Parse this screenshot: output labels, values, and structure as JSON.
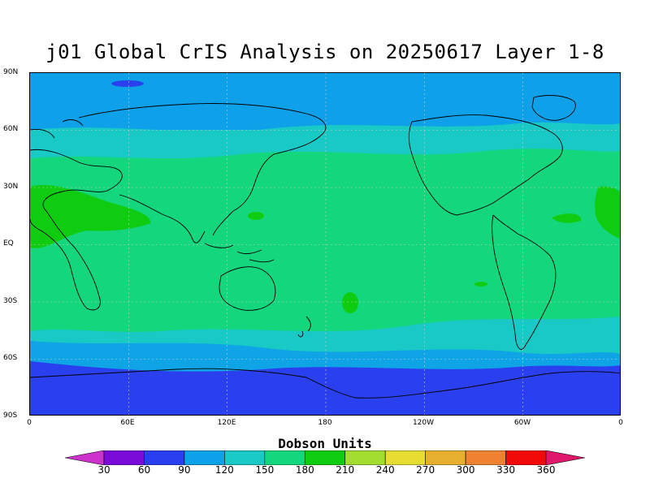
{
  "title": "j01 Global CrIS Analysis on 20250617 Layer 1-8",
  "y_axis_ticks": [
    "90N",
    "60N",
    "30N",
    "EQ",
    "30S",
    "60S",
    "90S"
  ],
  "x_axis_ticks": [
    "0",
    "60E",
    "120E",
    "180",
    "120W",
    "60W",
    "0"
  ],
  "colorbar": {
    "title": "Dobson Units",
    "labels": [
      "30",
      "60",
      "90",
      "120",
      "150",
      "180",
      "210",
      "240",
      "270",
      "300",
      "330",
      "360"
    ],
    "colors": [
      "#cc33cc",
      "#7a0ad8",
      "#2a3fee",
      "#0ea0e8",
      "#19c9c6",
      "#14d67d",
      "#10cc10",
      "#a3dd32",
      "#e6dc32",
      "#e6af2d",
      "#ee8232",
      "#f00a0a",
      "#e0186a"
    ]
  },
  "chart_data": {
    "type": "heatmap",
    "title": "j01 Global CrIS Analysis on 20250617 Layer 1-8",
    "xlabel": "",
    "ylabel": "",
    "units": "Dobson Units",
    "x_range": [
      "0",
      "360"
    ],
    "y_range": [
      "90S",
      "90N"
    ],
    "color_levels": [
      30,
      60,
      90,
      120,
      150,
      180,
      210,
      240,
      270,
      300,
      330,
      360
    ],
    "zonal_bands": [
      {
        "lat_from": 90,
        "lat_to": 65,
        "value_range": [
          90,
          120
        ]
      },
      {
        "lat_from": 65,
        "lat_to": 45,
        "value_range": [
          120,
          150
        ]
      },
      {
        "lat_from": 45,
        "lat_to": -30,
        "value_range": [
          150,
          180
        ]
      },
      {
        "lat_from": -30,
        "lat_to": -55,
        "value_range": [
          120,
          150
        ]
      },
      {
        "lat_from": -55,
        "lat_to": -65,
        "value_range": [
          90,
          120
        ]
      },
      {
        "lat_from": -65,
        "lat_to": -90,
        "value_range": [
          60,
          90
        ]
      }
    ],
    "features": [
      {
        "name": "North Africa / Arabia",
        "value_range": [
          180,
          210
        ]
      },
      {
        "name": "Tropical Atlantic (west Africa coast)",
        "value_range": [
          180,
          210
        ]
      },
      {
        "name": "Arctic small region",
        "value_range": [
          60,
          90
        ]
      }
    ]
  }
}
